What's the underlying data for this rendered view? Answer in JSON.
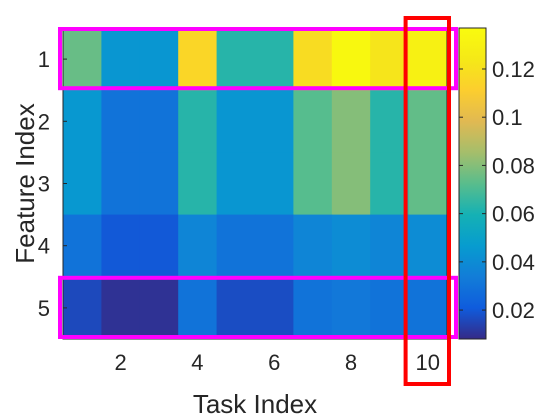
{
  "chart_data": {
    "type": "heatmap",
    "xlabel": "Task Index",
    "ylabel": "Feature Index",
    "x_categories": [
      1,
      2,
      3,
      4,
      5,
      6,
      7,
      8,
      9,
      10
    ],
    "y_categories": [
      1,
      2,
      3,
      4,
      5
    ],
    "x_tick_labels": [
      "2",
      "4",
      "6",
      "8",
      "10"
    ],
    "y_tick_labels": [
      "1",
      "2",
      "3",
      "4",
      "5"
    ],
    "values": [
      [
        0.075,
        0.044,
        0.044,
        0.115,
        0.063,
        0.063,
        0.118,
        0.135,
        0.122,
        0.13
      ],
      [
        0.045,
        0.03,
        0.03,
        0.063,
        0.044,
        0.044,
        0.072,
        0.08,
        0.063,
        0.074
      ],
      [
        0.045,
        0.03,
        0.03,
        0.063,
        0.044,
        0.044,
        0.072,
        0.08,
        0.063,
        0.074
      ],
      [
        0.03,
        0.02,
        0.02,
        0.037,
        0.03,
        0.03,
        0.037,
        0.04,
        0.037,
        0.04
      ],
      [
        0.016,
        0.01,
        0.01,
        0.03,
        0.017,
        0.017,
        0.03,
        0.032,
        0.03,
        0.03
      ]
    ],
    "colorbar": {
      "colormap": "parula",
      "range": [
        0.008,
        0.137
      ],
      "ticks": [
        0.02,
        0.04,
        0.06,
        0.08,
        0.1,
        0.12
      ],
      "tick_labels": [
        "0.02",
        "0.04",
        "0.06",
        "0.08",
        "0.1",
        "0.12"
      ]
    },
    "highlights": [
      {
        "kind": "row",
        "row": 1,
        "color": "#ff00ff"
      },
      {
        "kind": "row",
        "row": 5,
        "color": "#ff00ff"
      },
      {
        "kind": "column",
        "column": 10,
        "color": "#ff0000"
      }
    ]
  }
}
